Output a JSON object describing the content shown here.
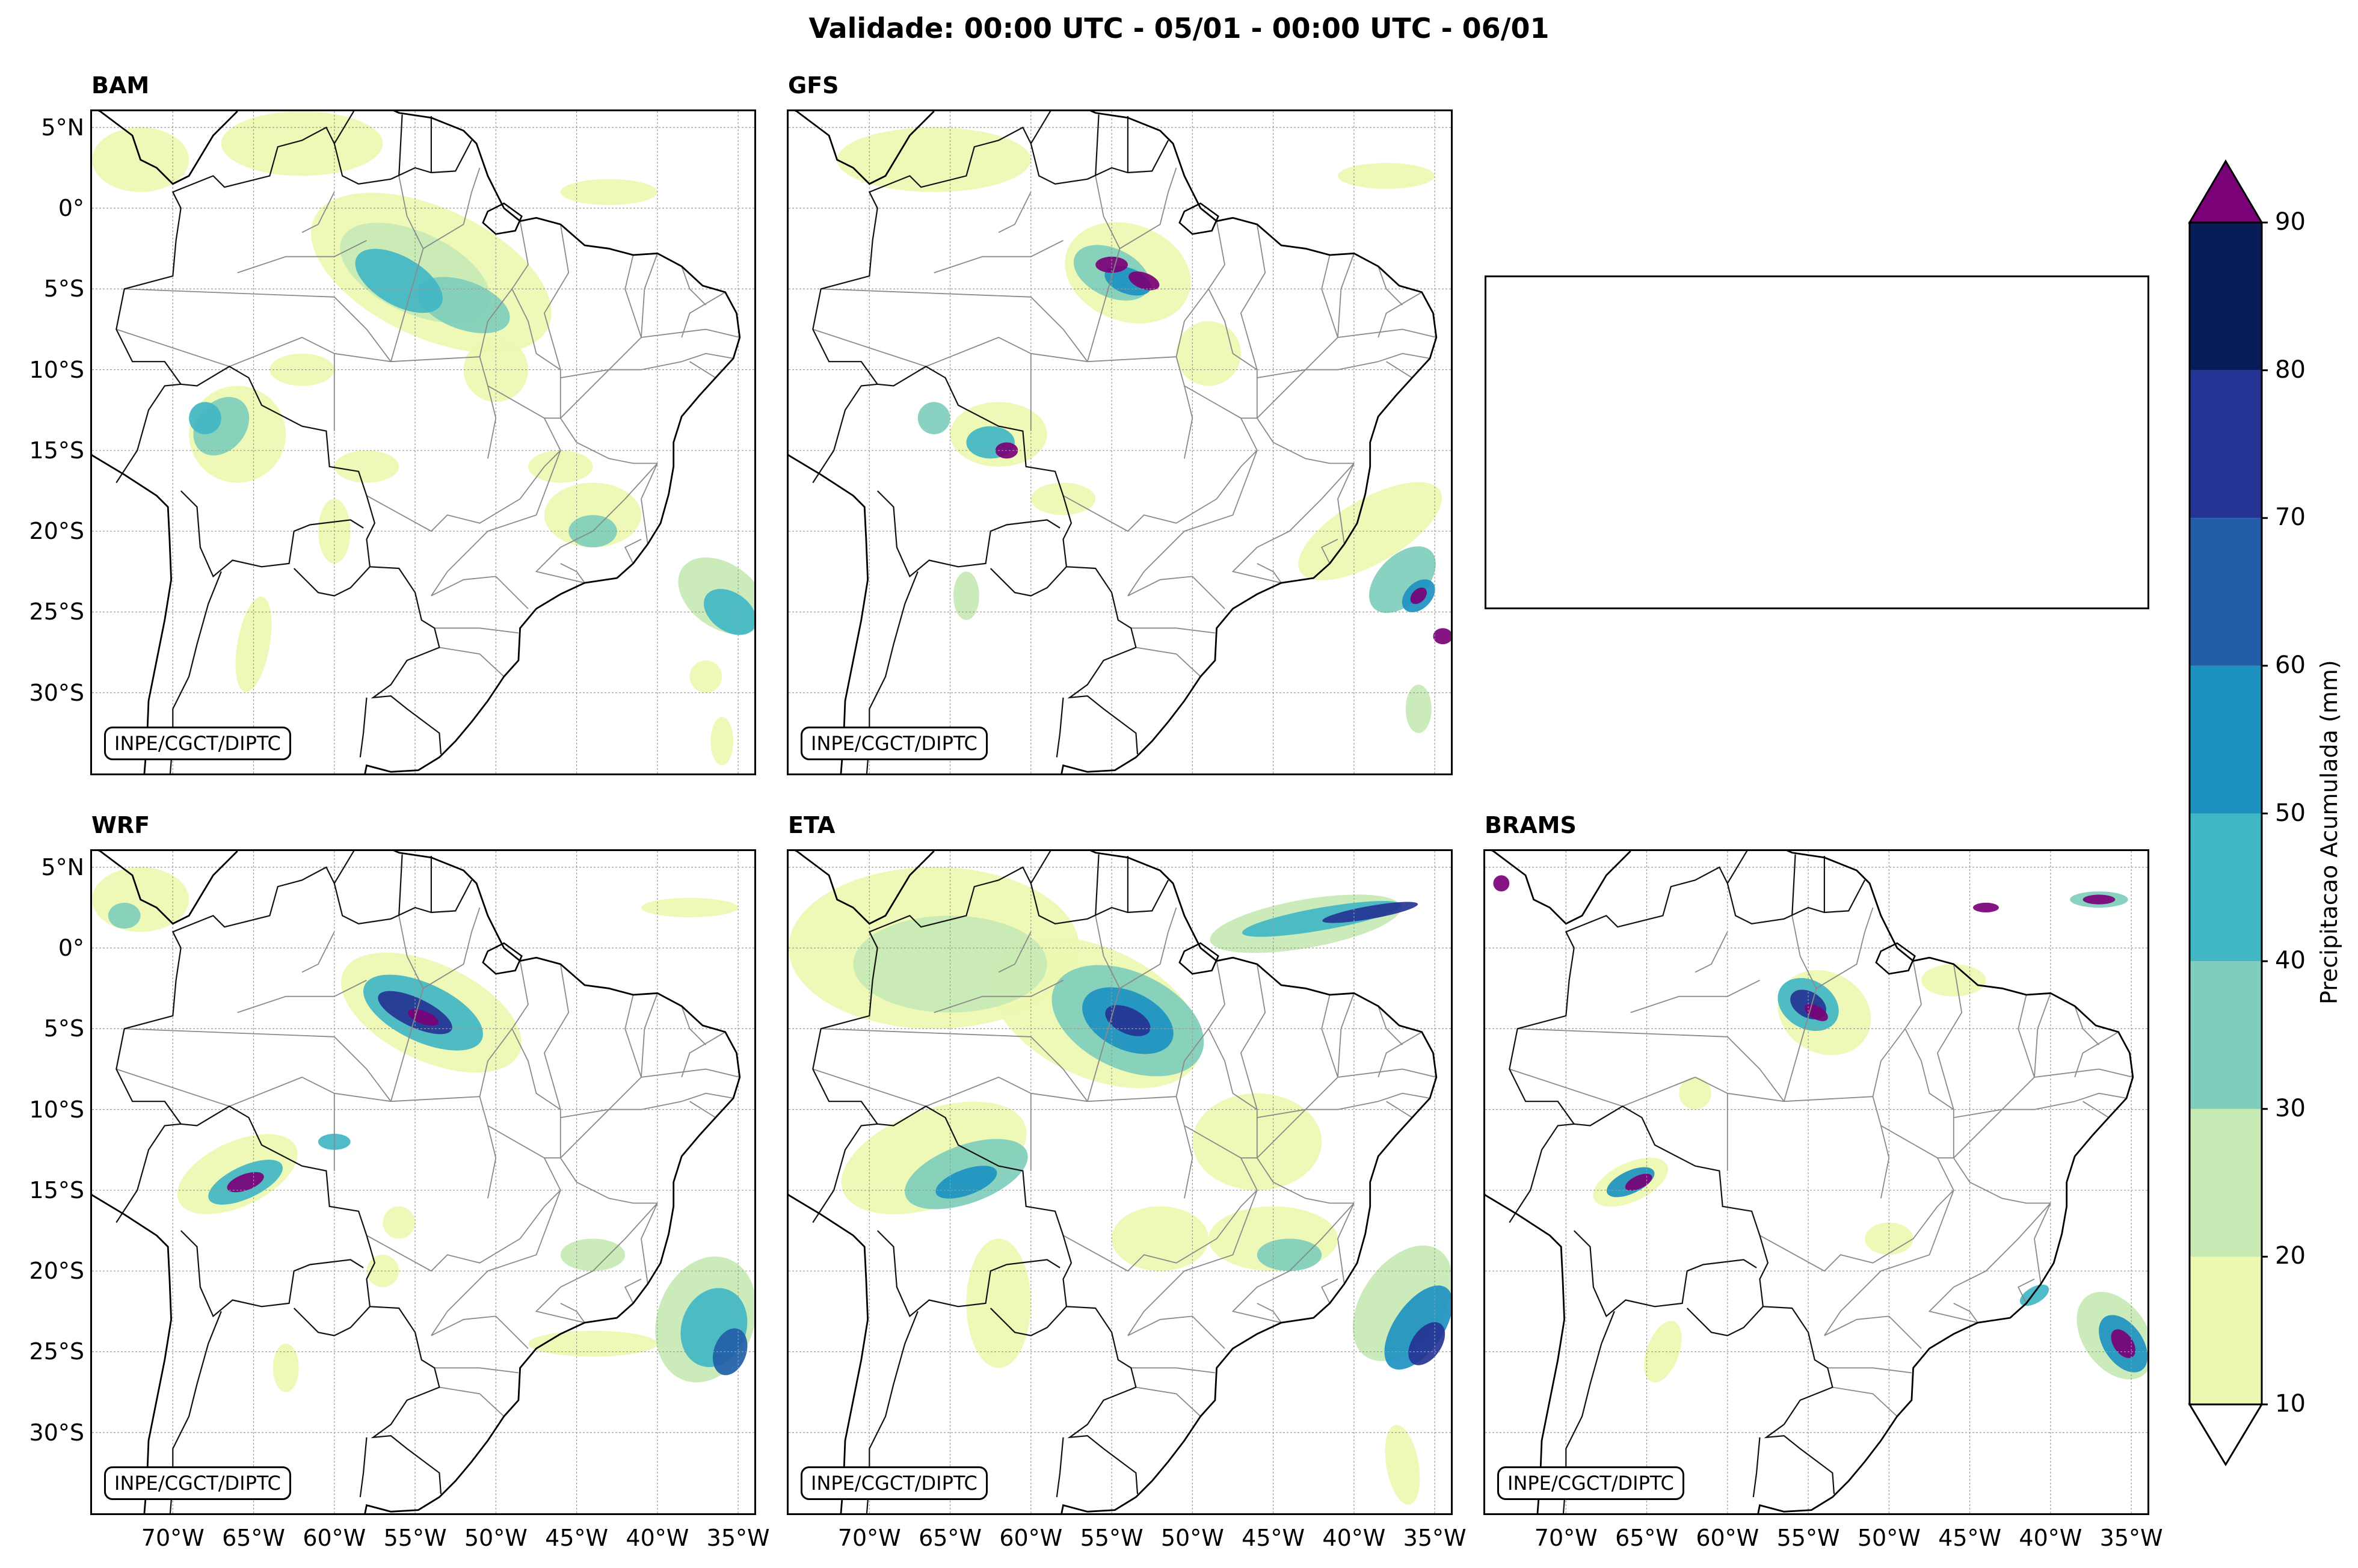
{
  "title": "Validade: 00:00 UTC - 05/01 - 00:00 UTC - 06/01",
  "panels": [
    {
      "id": "bam",
      "name": "BAM",
      "credit": "INPE/CGCT/DIPTC"
    },
    {
      "id": "gfs",
      "name": "GFS",
      "credit": "INPE/CGCT/DIPTC"
    },
    {
      "id": "wrf",
      "name": "WRF",
      "credit": "INPE/CGCT/DIPTC"
    },
    {
      "id": "eta",
      "name": "ETA",
      "credit": "INPE/CGCT/DIPTC"
    },
    {
      "id": "brams",
      "name": "BRAMS",
      "credit": "INPE/CGCT/DIPTC"
    }
  ],
  "lat_labels": [
    "5°N",
    "0°",
    "5°S",
    "10°S",
    "15°S",
    "20°S",
    "25°S",
    "30°S"
  ],
  "lon_labels": [
    "70°W",
    "65°W",
    "60°W",
    "55°W",
    "50°W",
    "45°W",
    "40°W",
    "35°W"
  ],
  "colorbar": {
    "title": "Precipitacao Acumulada (mm)",
    "ticks": [
      "10",
      "20",
      "30",
      "40",
      "50",
      "60",
      "70",
      "80",
      "90"
    ],
    "colors": [
      "#edf8b1",
      "#c7e9b4",
      "#7fcdbb",
      "#41b6c4",
      "#1d91c0",
      "#225ea8",
      "#253494",
      "#081d58"
    ],
    "over_color": "#7a0177",
    "under_color": "#ffffff"
  }
}
